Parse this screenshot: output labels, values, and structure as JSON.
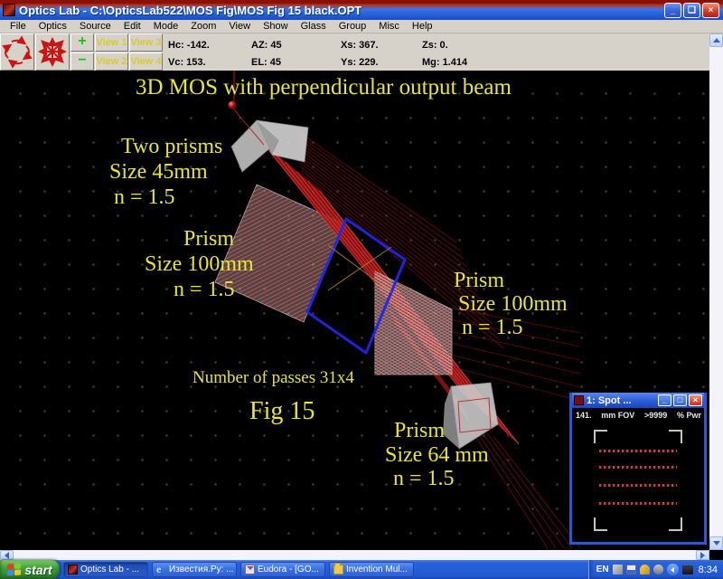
{
  "window": {
    "title": "Optics Lab  -  C:\\OpticsLab522\\MOS Fig\\MOS Fig 15 black.OPT"
  },
  "menu": {
    "items": [
      "File",
      "Optics",
      "Source",
      "Edit",
      "Mode",
      "Zoom",
      "View",
      "Show",
      "Glass",
      "Group",
      "Misc",
      "Help"
    ]
  },
  "toolbar": {
    "zoom_in": "+",
    "zoom_out": "−",
    "views": [
      "View 1",
      "View 2",
      "View 3",
      "View 4"
    ],
    "readouts": [
      "Hc: -142.",
      "AZ: 45",
      "Xs: 367.",
      "Zs: 0.",
      "Vc: 153.",
      "EL: 45",
      "Ys: 229.",
      "Mg: 1.414"
    ]
  },
  "canvas": {
    "labels": [
      "3D MOS with perpendicular output beam",
      "Two prisms",
      "Size 45mm",
      "n = 1.5",
      "Prism",
      "Size 100mm",
      "n = 1.5",
      "Prism",
      "Size 100mm",
      "n = 1.5",
      "Number of passes 31x4",
      "Fig 15",
      "Prism",
      "Size 64 mm",
      "n = 1.5"
    ]
  },
  "spot": {
    "title": "1: Spot ...",
    "fov": "141.",
    "fov_unit": "mm FOV",
    "pwr": ">9999",
    "pwr_unit": "% Pwr",
    "minimize": "_",
    "maximize": "□",
    "close": "×"
  },
  "window_buttons": {
    "minimize": "_",
    "maximize": "❏",
    "close": "×"
  },
  "taskbar": {
    "start_label": "start",
    "buttons": [
      "Optics Lab  -  ...",
      "Известия.Ру: ...",
      "Eudora - [GO...",
      "Invention Mul..."
    ],
    "tray_lang": "EN",
    "tray_clock": "8:34"
  },
  "colors": {
    "beam_red": "#b81818",
    "label_yellow": "#e9e43b",
    "outline_blue": "#2424e8",
    "titlebar_red": "#8a1005",
    "titlebar_blue": "#2563d8"
  }
}
